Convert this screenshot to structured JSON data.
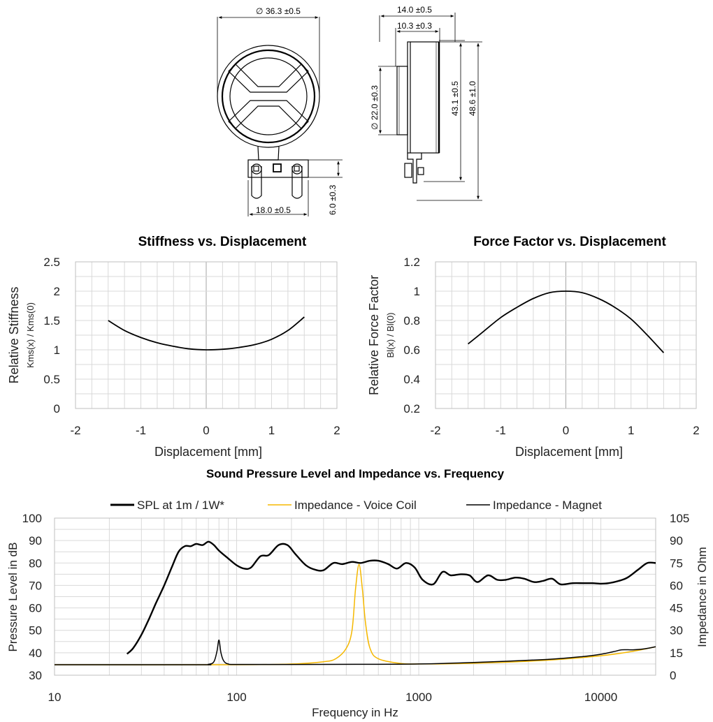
{
  "drawing": {
    "dim_diameter": "36.3 ±0.5",
    "dim_depth_total": "14.0 ±0.5",
    "dim_depth_body": "10.3 ±0.3",
    "dim_magnet_diameter": "22.0 ±0.3",
    "dim_height_body": "43.1 ±0.5",
    "dim_height_total": "48.6 ±1.0",
    "dim_terminal_width": "18.0 ±0.5",
    "dim_terminal_height": "6.0 ±0.3"
  },
  "chart_data": [
    {
      "type": "line",
      "title": "Stiffness vs. Displacement",
      "xlabel": "Displacement [mm]",
      "ylabel": "Relative Stiffness",
      "ylabel2": "Kms(x) / Kms(0)",
      "xlim": [
        -2,
        2
      ],
      "ylim": [
        0,
        2.5
      ],
      "xticks": [
        "-2",
        "-1",
        "0",
        "1",
        "2"
      ],
      "yticks": [
        "0",
        "0.5",
        "1",
        "1.5",
        "2",
        "2.5"
      ],
      "grid": true,
      "x": [
        -1.5,
        -1.25,
        -1.0,
        -0.75,
        -0.5,
        -0.25,
        0.0,
        0.25,
        0.5,
        0.75,
        1.0,
        1.25,
        1.5
      ],
      "y": [
        1.5,
        1.33,
        1.21,
        1.12,
        1.06,
        1.015,
        1.0,
        1.01,
        1.04,
        1.09,
        1.18,
        1.33,
        1.56
      ]
    },
    {
      "type": "line",
      "title": "Force Factor vs. Displacement",
      "xlabel": "Displacement  [mm]",
      "ylabel": "Relative Force Factor",
      "ylabel2": "Bl(x) / Bl(0)",
      "xlim": [
        -2,
        2
      ],
      "ylim": [
        0.2,
        1.2
      ],
      "xticks": [
        "-2",
        "-1",
        "0",
        "1",
        "2"
      ],
      "yticks": [
        "0.2",
        "0.4",
        "0.6",
        "0.8",
        "1",
        "1.2"
      ],
      "grid": true,
      "x": [
        -1.5,
        -1.25,
        -1.0,
        -0.75,
        -0.5,
        -0.25,
        0.0,
        0.25,
        0.5,
        0.75,
        1.0,
        1.25,
        1.5
      ],
      "y": [
        0.64,
        0.73,
        0.82,
        0.89,
        0.95,
        0.99,
        1.0,
        0.99,
        0.95,
        0.89,
        0.81,
        0.7,
        0.58
      ]
    },
    {
      "type": "line",
      "title": "Sound Pressure Level and Impedance vs. Frequency",
      "xlabel": "Frequency in Hz",
      "ylabel": "Pressure Level in dB",
      "ylabel_right": "Impedance in Ohm",
      "x_scale": "log",
      "xlim": [
        10,
        20000
      ],
      "ylim": [
        30,
        100
      ],
      "ylim_right": [
        0,
        105
      ],
      "xticks": [
        "10",
        "100",
        "1000",
        "10000"
      ],
      "yticks": [
        "30",
        "40",
        "50",
        "60",
        "70",
        "80",
        "90",
        "100"
      ],
      "yticks_right": [
        "0",
        "15",
        "30",
        "45",
        "60",
        "75",
        "90",
        "105"
      ],
      "legend_position": "top",
      "grid": true,
      "series": [
        {
          "name": "SPL at 1m / 1W*",
          "axis": "left",
          "color": "#000000",
          "x": [
            25,
            27,
            30,
            33,
            36,
            40,
            44,
            48,
            52,
            56,
            60,
            65,
            70,
            75,
            80,
            90,
            100,
            110,
            120,
            135,
            150,
            170,
            190,
            210,
            240,
            270,
            300,
            340,
            380,
            430,
            480,
            540,
            600,
            680,
            760,
            850,
            950,
            1050,
            1200,
            1350,
            1500,
            1700,
            1900,
            2100,
            2400,
            2700,
            3000,
            3400,
            3800,
            4300,
            4800,
            5400,
            6000,
            7000,
            8000,
            9000,
            10000,
            11000,
            12500,
            14000,
            16000,
            18000,
            20000
          ],
          "y": [
            39.5,
            42,
            48,
            55,
            62,
            70,
            78,
            85,
            87.5,
            87.5,
            88.5,
            88,
            89.5,
            88,
            85.5,
            82,
            79,
            77.5,
            78,
            83,
            83.5,
            88,
            88,
            84,
            79,
            77,
            76.8,
            80,
            79.5,
            80.5,
            80,
            81,
            81,
            79.5,
            77.5,
            80,
            78,
            72.5,
            70.5,
            76,
            74.5,
            75,
            74.5,
            71.5,
            74.5,
            72.5,
            72.5,
            73.5,
            73,
            71.5,
            72,
            73,
            70.5,
            71,
            71,
            71,
            70.8,
            71,
            72,
            73.5,
            77,
            80,
            80
          ]
        },
        {
          "name": "Impedance - Voice Coil",
          "axis": "right",
          "color": "#f5b800",
          "x": [
            10,
            100,
            200,
            300,
            350,
            400,
            430,
            450,
            470,
            490,
            510,
            540,
            600,
            800,
            1000,
            2000,
            5000,
            10000,
            15000,
            20000
          ],
          "y": [
            7,
            7,
            7.5,
            9,
            11,
            18,
            30,
            58,
            74,
            58,
            35,
            18,
            11,
            7.8,
            7.5,
            8,
            10,
            13,
            16,
            19
          ]
        },
        {
          "name": "Impedance - Magnet",
          "axis": "right",
          "color": "#000000",
          "x": [
            10,
            60,
            70,
            75,
            78,
            80,
            82,
            85,
            90,
            100,
            200,
            500,
            1000,
            2000,
            5000,
            8000,
            10000,
            12000,
            13000,
            15000,
            17000,
            20000
          ],
          "y": [
            7,
            7,
            7.3,
            9,
            16,
            23.5,
            15,
            9.5,
            7.5,
            7.2,
            7.2,
            7.3,
            7.5,
            8.5,
            10.5,
            12.5,
            14,
            16,
            17,
            17,
            17.5,
            19
          ]
        }
      ]
    }
  ]
}
